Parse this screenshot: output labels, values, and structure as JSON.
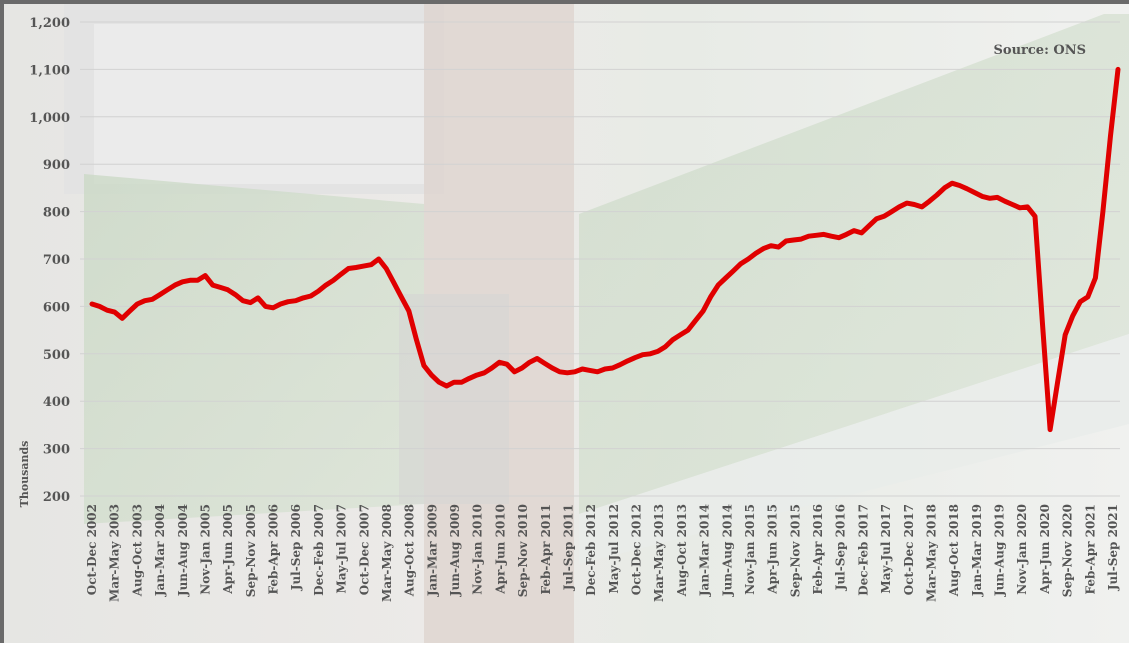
{
  "chart_data": {
    "type": "line",
    "title": "",
    "source_note": "Source: ONS",
    "xlabel": "",
    "ylabel": "Thousands",
    "ylim": [
      200,
      1200
    ],
    "yticks": [
      200,
      300,
      400,
      500,
      600,
      700,
      800,
      900,
      1000,
      1100,
      1200
    ],
    "ytick_labels": [
      "200",
      "300",
      "400",
      "500",
      "600",
      "700",
      "800",
      "900",
      "1,000",
      "1,100",
      "1,200"
    ],
    "grid": true,
    "line_color": "#e00000",
    "x_tick_labels": [
      "Oct-Dec 2002",
      "Mar-May 2003",
      "Aug-Oct 2003",
      "Jan-Mar 2004",
      "Jun-Aug 2004",
      "Nov-Jan 2005",
      "Apr-Jun 2005",
      "Sep-Nov 2005",
      "Feb-Apr 2006",
      "Jul-Sep 2006",
      "Dec-Feb 2007",
      "May-Jul 2007",
      "Oct-Dec 2007",
      "Mar-May 2008",
      "Aug-Oct 2008",
      "Jan-Mar 2009",
      "Jun-Aug 2009",
      "Nov-Jan 2010",
      "Apr-Jun 2010",
      "Sep-Nov 2010",
      "Feb-Apr 2011",
      "Jul-Sep 2011",
      "Dec-Feb 2012",
      "May-Jul 2012",
      "Oct-Dec 2012",
      "Mar-May 2013",
      "Aug-Oct 2013",
      "Jan-Mar 2014",
      "Jun-Aug 2014",
      "Nov-Jan 2015",
      "Apr-Jun 2015",
      "Sep-Nov 2015",
      "Feb-Apr 2016",
      "Jul-Sep 2016",
      "Dec-Feb 2017",
      "May-Jul 2017",
      "Oct-Dec 2017",
      "Mar-May 2018",
      "Aug-Oct 2018",
      "Jan-Mar 2019",
      "Jun-Aug 2019",
      "Nov-Jan 2020",
      "Apr-Jun 2020",
      "Sep-Nov 2020",
      "Feb-Apr 2021",
      "Jul-Sep 2021"
    ],
    "series": [
      {
        "values": [
          605,
          600,
          592,
          588,
          575,
          590,
          605,
          612,
          615,
          625,
          635,
          645,
          652,
          655,
          655,
          665,
          645,
          640,
          635,
          625,
          612,
          608,
          618,
          600,
          597,
          605,
          610,
          612,
          618,
          622,
          632,
          645,
          655,
          668,
          680,
          682,
          685,
          688,
          700,
          680,
          650,
          620,
          590,
          530,
          475,
          455,
          440,
          432,
          440,
          440,
          448,
          455,
          460,
          470,
          482,
          478,
          462,
          470,
          482,
          490,
          480,
          470,
          462,
          460,
          462,
          468,
          465,
          462,
          468,
          470,
          477,
          485,
          492,
          498,
          500,
          505,
          515,
          530,
          540,
          550,
          570,
          590,
          620,
          645,
          660,
          675,
          690,
          700,
          712,
          722,
          728,
          725,
          738,
          740,
          742,
          748,
          750,
          752,
          748,
          745,
          752,
          760,
          755,
          770,
          785,
          790,
          800,
          810,
          818,
          815,
          810,
          822,
          835,
          850,
          860,
          855,
          848,
          840,
          832,
          828,
          830,
          822,
          815,
          808,
          810,
          790,
          560,
          340,
          440,
          540,
          580,
          610,
          620,
          660,
          800,
          960,
          1100
        ]
      }
    ]
  }
}
